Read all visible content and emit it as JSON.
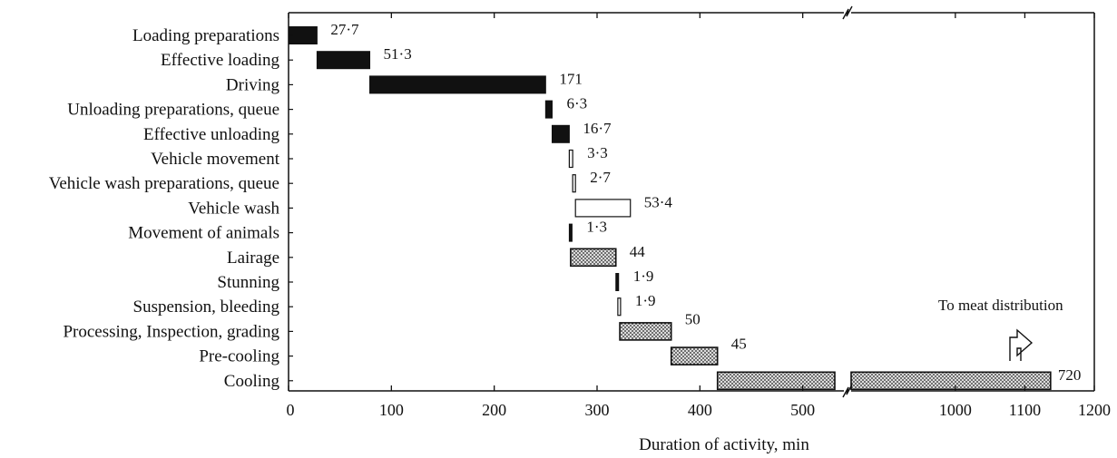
{
  "chart_data": {
    "type": "bar",
    "subtype": "gantt",
    "title": "",
    "xlabel": "Duration of activity, min",
    "ylabel": "",
    "x_axis": {
      "segments": [
        {
          "xlim": [
            0,
            540
          ],
          "ticks": [
            0,
            100,
            200,
            300,
            400,
            500
          ]
        },
        {
          "xlim": [
            850,
            1200
          ],
          "ticks": [
            1000,
            1100,
            1200
          ]
        }
      ],
      "broken": true
    },
    "grid": false,
    "legend": "none",
    "colors": {
      "solid": "#111111",
      "hollow": "#ffffff",
      "dotted_fill": "#dcdcdc",
      "dot": "#222222"
    },
    "activities": [
      {
        "label": "Loading preparations",
        "value_label": "27·7",
        "start": 0,
        "duration": 27.7,
        "style": "solid"
      },
      {
        "label": "Effective loading",
        "value_label": "51·3",
        "start": 27.7,
        "duration": 51.3,
        "style": "solid"
      },
      {
        "label": "Driving",
        "value_label": "171",
        "start": 79,
        "duration": 171,
        "style": "solid"
      },
      {
        "label": "Unloading preparations, queue",
        "value_label": "6·3",
        "start": 250,
        "duration": 6.3,
        "style": "solid"
      },
      {
        "label": "Effective unloading",
        "value_label": "16·7",
        "start": 256.3,
        "duration": 16.7,
        "style": "solid"
      },
      {
        "label": "Vehicle movement",
        "value_label": "3·3",
        "start": 273,
        "duration": 3.3,
        "style": "hollow"
      },
      {
        "label": "Vehicle wash preparations, queue",
        "value_label": "2·7",
        "start": 276.3,
        "duration": 2.7,
        "style": "hollow"
      },
      {
        "label": "Vehicle wash",
        "value_label": "53·4",
        "start": 279,
        "duration": 53.4,
        "style": "hollow"
      },
      {
        "label": "Movement of animals",
        "value_label": "1·3",
        "start": 273,
        "duration": 1.3,
        "style": "solid"
      },
      {
        "label": "Lairage",
        "value_label": "44",
        "start": 274.3,
        "duration": 44,
        "style": "dotted"
      },
      {
        "label": "Stunning",
        "value_label": "1·9",
        "start": 318.3,
        "duration": 1.9,
        "style": "solid"
      },
      {
        "label": "Suspension, bleeding",
        "value_label": "1·9",
        "start": 320.2,
        "duration": 1.9,
        "style": "hollow"
      },
      {
        "label": "Processing, Inspection, grading",
        "value_label": "50",
        "start": 322.1,
        "duration": 50,
        "style": "dotted"
      },
      {
        "label": "Pre-cooling",
        "value_label": "45",
        "start": 372.1,
        "duration": 45,
        "style": "dotted"
      },
      {
        "label": "Cooling",
        "value_label": "720",
        "start": 417.1,
        "duration": 720,
        "style": "dotted"
      }
    ],
    "annotations": [
      "To meat distribution"
    ]
  }
}
